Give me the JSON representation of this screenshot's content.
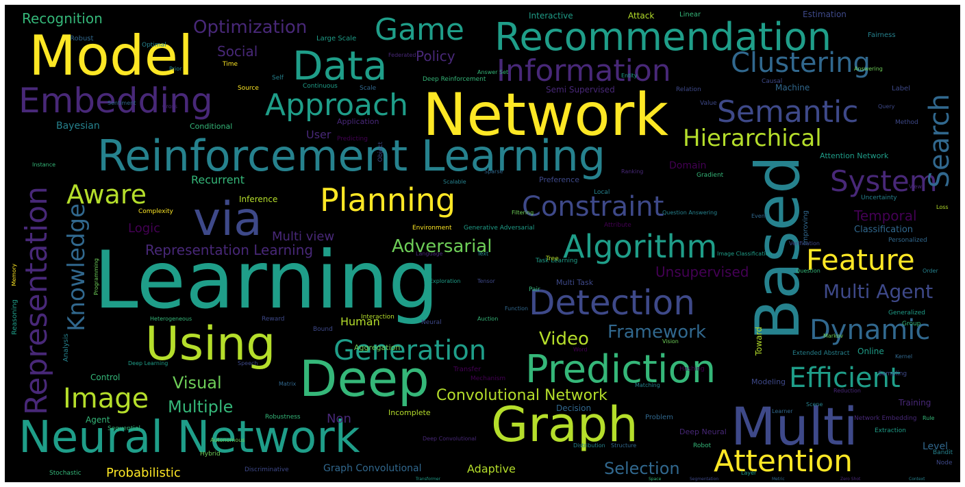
{
  "palette": {
    "background": "#000000",
    "border": "#ffffff",
    "colors": [
      "#fde725",
      "#b5de2b",
      "#6ece58",
      "#35b779",
      "#1f9e89",
      "#26828e",
      "#31688e",
      "#3e4989",
      "#482878",
      "#440154"
    ]
  },
  "words": [
    {
      "text": "Learning"
    },
    {
      "text": "Network"
    },
    {
      "text": "Based"
    },
    {
      "text": "Reinforcement Learning"
    },
    {
      "text": "Neural Network"
    },
    {
      "text": "Model"
    },
    {
      "text": "Graph"
    },
    {
      "text": "Multi"
    },
    {
      "text": "Deep"
    },
    {
      "text": "Using"
    },
    {
      "text": "Prediction"
    },
    {
      "text": "via"
    },
    {
      "text": "Recommendation"
    },
    {
      "text": "Data"
    },
    {
      "text": "Representation"
    },
    {
      "text": "Detection"
    },
    {
      "text": "Embedding"
    },
    {
      "text": "Information"
    },
    {
      "text": "Algorithm"
    },
    {
      "text": "Attention"
    },
    {
      "text": "Semantic"
    },
    {
      "text": "Clustering"
    },
    {
      "text": "System"
    },
    {
      "text": "Constraint"
    },
    {
      "text": "Planning"
    },
    {
      "text": "Knowledge"
    },
    {
      "text": "Game"
    },
    {
      "text": "Approach"
    },
    {
      "text": "Search"
    },
    {
      "text": "Feature"
    },
    {
      "text": "Efficient"
    },
    {
      "text": "Dynamic"
    },
    {
      "text": "Generation"
    },
    {
      "text": "Image"
    },
    {
      "text": "Hierarchical"
    },
    {
      "text": "Aware"
    },
    {
      "text": "Optimization"
    },
    {
      "text": "Framework"
    },
    {
      "text": "Multi Agent"
    },
    {
      "text": "Convolutional Network"
    },
    {
      "text": "Adversarial"
    },
    {
      "text": "Representation Learning"
    },
    {
      "text": "Selection"
    },
    {
      "text": "Multiple"
    },
    {
      "text": "Video"
    },
    {
      "text": "Visual"
    },
    {
      "text": "Recognition"
    },
    {
      "text": "Social"
    },
    {
      "text": "Policy"
    },
    {
      "text": "Temporal"
    },
    {
      "text": "Unsupervised"
    },
    {
      "text": "Multi view"
    },
    {
      "text": "Probabilistic"
    },
    {
      "text": "Graph Convolutional"
    },
    {
      "text": "Human"
    },
    {
      "text": "Non"
    },
    {
      "text": "User"
    },
    {
      "text": "Recurrent"
    },
    {
      "text": "Logic"
    },
    {
      "text": "Adaptive"
    },
    {
      "text": "Level"
    },
    {
      "text": "Domain"
    },
    {
      "text": "Bayesian"
    },
    {
      "text": "Classification"
    },
    {
      "text": "Inference"
    },
    {
      "text": "Conditional"
    },
    {
      "text": "Incomplete"
    },
    {
      "text": "Agent"
    },
    {
      "text": "Control"
    },
    {
      "text": "Toward"
    },
    {
      "text": "Interactive"
    },
    {
      "text": "Attack"
    },
    {
      "text": "Linear"
    },
    {
      "text": "Estimation"
    },
    {
      "text": "Semi Supervised"
    },
    {
      "text": "Multi Task"
    },
    {
      "text": "Preference"
    },
    {
      "text": "Application"
    },
    {
      "text": "Machine"
    },
    {
      "text": "Online"
    },
    {
      "text": "Training"
    },
    {
      "text": "Decision"
    },
    {
      "text": "Modeling"
    },
    {
      "text": "Improving"
    },
    {
      "text": "Deep Neural"
    },
    {
      "text": "Reasoning"
    },
    {
      "text": "Aggregation"
    },
    {
      "text": "Robust"
    },
    {
      "text": "Optimal"
    },
    {
      "text": "Large Scale"
    },
    {
      "text": "Deep Reinforcement"
    },
    {
      "text": "Fairness"
    },
    {
      "text": "Label"
    },
    {
      "text": "Relation"
    },
    {
      "text": "Causal"
    },
    {
      "text": "Continuous"
    },
    {
      "text": "Time"
    },
    {
      "text": "Self"
    },
    {
      "text": "Source"
    },
    {
      "text": "Scale"
    },
    {
      "text": "Value"
    },
    {
      "text": "Method"
    },
    {
      "text": "Attention Network"
    },
    {
      "text": "Generative Adversarial"
    },
    {
      "text": "Environment"
    },
    {
      "text": "Attribute"
    },
    {
      "text": "Complexity"
    },
    {
      "text": "Personalized"
    },
    {
      "text": "Uncertainty"
    },
    {
      "text": "Heterogeneous"
    },
    {
      "text": "Analysis"
    },
    {
      "text": "Reward"
    },
    {
      "text": "Bound"
    },
    {
      "text": "Task Learning"
    },
    {
      "text": "Pair"
    },
    {
      "text": "Tree"
    },
    {
      "text": "Neural"
    },
    {
      "text": "Group"
    },
    {
      "text": "Generalized"
    },
    {
      "text": "Extended Abstract"
    },
    {
      "text": "Sampling"
    },
    {
      "text": "Robustness"
    },
    {
      "text": "Problem"
    },
    {
      "text": "Robot"
    },
    {
      "text": "Hybrid"
    },
    {
      "text": "Sequential"
    },
    {
      "text": "Stochastic"
    },
    {
      "text": "Discriminative"
    },
    {
      "text": "Network Embedding"
    },
    {
      "text": "Extraction"
    },
    {
      "text": "Bandit"
    },
    {
      "text": "Node"
    },
    {
      "text": "Transfer"
    },
    {
      "text": "Mechanism"
    },
    {
      "text": "Hashing"
    },
    {
      "text": "Memory"
    },
    {
      "text": "Programming"
    },
    {
      "text": "Scalable"
    },
    {
      "text": "Object"
    },
    {
      "text": "Local"
    },
    {
      "text": "Gradient"
    },
    {
      "text": "Interaction"
    },
    {
      "text": "Predicting"
    },
    {
      "text": "Cross"
    },
    {
      "text": "Word"
    },
    {
      "text": "Layer"
    },
    {
      "text": "Scene"
    },
    {
      "text": "Learner"
    },
    {
      "text": "Vision"
    },
    {
      "text": "View"
    },
    {
      "text": "Verification"
    },
    {
      "text": "Kernel"
    },
    {
      "text": "Matching"
    },
    {
      "text": "Rule"
    },
    {
      "text": "Reduction"
    },
    {
      "text": "Structure"
    },
    {
      "text": "Markov"
    },
    {
      "text": "Loss"
    },
    {
      "text": "Order"
    },
    {
      "text": "Event"
    },
    {
      "text": "Query"
    },
    {
      "text": "Image Classification"
    },
    {
      "text": "Question"
    },
    {
      "text": "Text"
    },
    {
      "text": "Language"
    },
    {
      "text": "Exploration"
    },
    {
      "text": "Tensor"
    },
    {
      "text": "Filtering"
    },
    {
      "text": "Sparse"
    },
    {
      "text": "Ranking"
    },
    {
      "text": "Question Answering"
    },
    {
      "text": "Auction"
    },
    {
      "text": "Function"
    },
    {
      "text": "Autonomous"
    },
    {
      "text": "Deep Learning"
    },
    {
      "text": "Speech"
    },
    {
      "text": "Matrix"
    },
    {
      "text": "Deep Convolutional"
    },
    {
      "text": "Distribution"
    },
    {
      "text": "Space"
    },
    {
      "text": "Transformer"
    },
    {
      "text": "Segmentation"
    },
    {
      "text": "Metric"
    },
    {
      "text": "Zero Shot"
    },
    {
      "text": "Context"
    },
    {
      "text": "Instance"
    },
    {
      "text": "Sentiment"
    },
    {
      "text": "Prior"
    },
    {
      "text": "Federated"
    },
    {
      "text": "Answer Set"
    },
    {
      "text": "Entity"
    },
    {
      "text": "Answering"
    }
  ]
}
